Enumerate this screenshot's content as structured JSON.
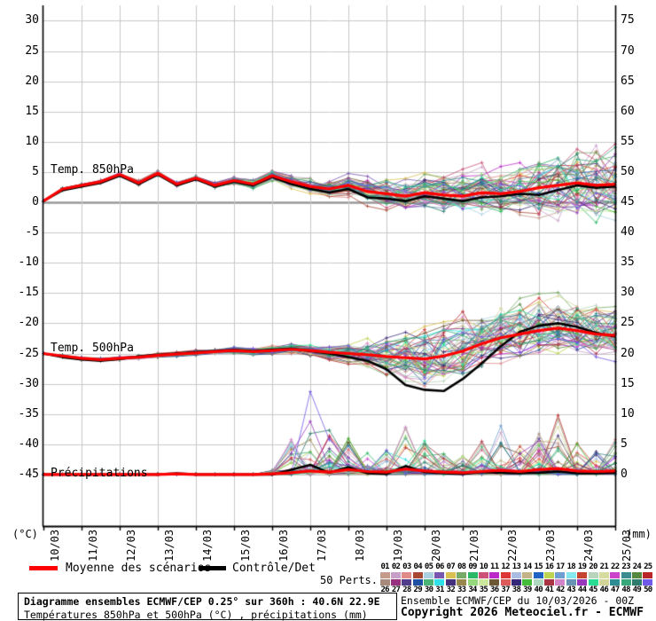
{
  "plot": {
    "left_unit": "(°C)",
    "right_unit": "(mm)",
    "series_labels": {
      "t850": "Temp. 850hPa",
      "t500": "Temp. 500hPa",
      "precip": "Précipitations"
    }
  },
  "legend": {
    "mean_label": "Moyenne des scénarios",
    "control_label": "Contrôle/Det",
    "perts_label": "50 Perts.",
    "mean_color": "#ff0000",
    "control_color": "#000000"
  },
  "footer": {
    "box_line1": "Diagramme ensembles ECMWF/CEP 0.25° sur 360h : 40.6N 22.9E",
    "box_line2": "Températures 850hPa et 500hPa (°C) , précipitations (mm)",
    "right_line1": "Ensemble ECMWF/CEP du 10/03/2026 - 00Z",
    "right_line2": "Copyright 2026 Meteociel.fr - ECMWF"
  },
  "chart_data": {
    "type": "line",
    "title": "Diagramme ensembles ECMWF/CEP 0.25° sur 360h : 40.6N 22.9E",
    "subtitle": "Températures 850hPa et 500hPa (°C) , précipitations (mm)",
    "run": "Ensemble ECMWF/CEP du 10/03/2026 - 00Z",
    "forecast_hours": 360,
    "x_dates": [
      "10/03",
      "11/03",
      "12/03",
      "13/03",
      "14/03",
      "15/03",
      "16/03",
      "17/03",
      "18/03",
      "19/03",
      "20/03",
      "21/03",
      "22/03",
      "23/03",
      "24/03",
      "25/03"
    ],
    "left_axis": {
      "label": "(°C)",
      "min": -45,
      "max": 30,
      "ticks": [
        30,
        25,
        20,
        15,
        10,
        5,
        0,
        -5,
        -10,
        -15,
        -20,
        -25,
        -30,
        -35,
        -40,
        -45
      ]
    },
    "right_axis": {
      "label": "(mm)",
      "min": 0,
      "max": 75,
      "ticks": [
        75,
        70,
        65,
        60,
        55,
        50,
        45,
        40,
        35,
        30,
        25,
        20,
        15,
        10,
        5,
        0
      ]
    },
    "grid": true,
    "legend_position": "bottom",
    "sample_step_days": 0.5,
    "members": 50,
    "mean_850": [
      0.2,
      2.2,
      2.8,
      3.4,
      4.6,
      3.2,
      4.8,
      3.0,
      4.0,
      2.8,
      3.6,
      3.0,
      4.4,
      3.4,
      2.6,
      2.2,
      2.8,
      1.8,
      1.4,
      1.0,
      1.6,
      1.2,
      1.0,
      1.6,
      1.4,
      1.8,
      2.4,
      2.8,
      3.2,
      2.8,
      3.0
    ],
    "control_850": [
      0.2,
      2.0,
      2.6,
      3.2,
      4.4,
      3.0,
      4.6,
      2.8,
      3.8,
      2.6,
      3.4,
      2.8,
      4.2,
      3.0,
      2.2,
      1.6,
      2.2,
      0.8,
      0.6,
      0.2,
      1.0,
      0.6,
      0.2,
      0.8,
      1.0,
      1.4,
      1.2,
      2.0,
      2.8,
      2.4,
      2.6
    ],
    "env_850_min": [
      0.0,
      1.6,
      2.2,
      2.8,
      4.0,
      2.4,
      4.0,
      2.2,
      3.2,
      1.8,
      2.6,
      1.8,
      3.0,
      1.8,
      1.0,
      0.2,
      0.4,
      -1.0,
      -1.6,
      -2.2,
      -1.8,
      -2.6,
      -3.2,
      -2.8,
      -3.4,
      -3.2,
      -3.8,
      -4.2,
      -4.6,
      -5.0,
      -4.6
    ],
    "env_850_max": [
      0.4,
      2.8,
      3.4,
      4.0,
      5.2,
      4.0,
      5.6,
      3.8,
      4.8,
      3.8,
      4.8,
      4.4,
      5.8,
      5.0,
      4.4,
      4.4,
      5.4,
      4.6,
      4.8,
      4.6,
      5.4,
      5.2,
      5.8,
      6.6,
      6.8,
      8.0,
      9.0,
      9.8,
      10.8,
      11.6,
      12.2
    ],
    "mean_500": [
      -25.0,
      -25.4,
      -25.8,
      -26.0,
      -25.8,
      -25.6,
      -25.3,
      -25.1,
      -24.9,
      -24.7,
      -24.5,
      -24.7,
      -24.5,
      -24.3,
      -24.5,
      -24.8,
      -25.0,
      -25.2,
      -25.5,
      -25.7,
      -25.9,
      -25.4,
      -24.6,
      -23.4,
      -22.4,
      -21.8,
      -21.2,
      -20.8,
      -21.2,
      -21.8,
      -22.0
    ],
    "control_500": [
      -25.0,
      -25.6,
      -26.0,
      -26.2,
      -25.9,
      -25.5,
      -25.2,
      -25.0,
      -24.8,
      -24.6,
      -24.4,
      -24.6,
      -24.4,
      -24.2,
      -24.6,
      -25.0,
      -25.6,
      -26.2,
      -27.6,
      -30.2,
      -31.0,
      -31.2,
      -29.2,
      -26.6,
      -23.8,
      -21.4,
      -20.4,
      -20.0,
      -20.6,
      -21.6,
      -22.2
    ],
    "env_500_min": [
      -25.4,
      -26.0,
      -26.4,
      -26.6,
      -26.4,
      -26.2,
      -26.0,
      -25.8,
      -25.6,
      -25.4,
      -25.4,
      -25.6,
      -25.6,
      -25.4,
      -25.8,
      -26.4,
      -27.0,
      -27.8,
      -28.8,
      -30.2,
      -31.0,
      -30.6,
      -29.6,
      -28.2,
      -27.2,
      -26.4,
      -25.8,
      -25.4,
      -26.0,
      -26.4,
      -26.8
    ],
    "env_500_max": [
      -24.6,
      -24.9,
      -25.2,
      -25.4,
      -25.2,
      -25.0,
      -24.7,
      -24.5,
      -24.2,
      -24.0,
      -23.6,
      -23.8,
      -23.4,
      -23.0,
      -23.2,
      -23.0,
      -22.6,
      -22.0,
      -21.2,
      -20.2,
      -19.6,
      -18.8,
      -17.8,
      -16.6,
      -16.0,
      -15.4,
      -15.0,
      -14.8,
      -15.2,
      -15.8,
      -16.0
    ],
    "mean_precip": [
      0,
      0,
      0,
      0,
      0,
      0,
      0,
      0.1,
      0,
      0,
      0,
      0,
      0.1,
      0.3,
      0.6,
      0.4,
      0.8,
      0.5,
      0.4,
      0.9,
      0.6,
      0.4,
      0.3,
      0.5,
      0.7,
      0.5,
      0.8,
      1.0,
      0.6,
      0.5,
      0.6
    ],
    "control_precip": [
      0,
      0,
      0,
      0,
      0,
      0,
      0,
      0.2,
      0,
      0,
      0,
      0,
      0,
      0.8,
      1.6,
      0.3,
      1.2,
      0.2,
      0.1,
      1.4,
      0.4,
      0.2,
      0.1,
      0.4,
      0.3,
      0.2,
      0.3,
      0.5,
      0.2,
      0.2,
      0.3
    ],
    "env_precip_max": [
      0,
      0,
      0,
      0,
      0,
      0,
      0,
      0.3,
      0,
      0,
      0,
      0,
      0.5,
      6,
      14,
      8,
      7,
      5,
      4,
      8,
      6,
      4,
      3,
      6,
      9,
      5,
      7,
      11,
      6,
      5,
      7
    ],
    "member_colors": [
      "#c49a8a",
      "#c89fc9",
      "#e08a8a",
      "#a84832",
      "#abd0e2",
      "#7a57ae",
      "#dabf52",
      "#76aa66",
      "#2ab866",
      "#cc5278",
      "#bc2aca",
      "#dc3636",
      "#aabce2",
      "#c2b488",
      "#2262c2",
      "#bcd44e",
      "#6f9fd0",
      "#84e8ee",
      "#c44430",
      "#b9d4bd",
      "#d6dc9e",
      "#cc44cc",
      "#3a8c8e",
      "#55893f",
      "#b82629",
      "#a68b7c",
      "#97307e",
      "#513c8c",
      "#1d4fa2",
      "#4ab476",
      "#2ee0e8",
      "#45307e",
      "#98884c",
      "#94d87c",
      "#cce89c",
      "#6c5834",
      "#dc5c5c",
      "#382878",
      "#44bc38",
      "#b0d8c0",
      "#a83444",
      "#d484c8",
      "#6894b4",
      "#9838bc",
      "#28dc94",
      "#d2d49a",
      "#2d8c94",
      "#36a87a",
      "#2d7c6e",
      "#7058e8"
    ],
    "grid_color": "#c9c9c9",
    "zero_line_color": "#999999"
  }
}
